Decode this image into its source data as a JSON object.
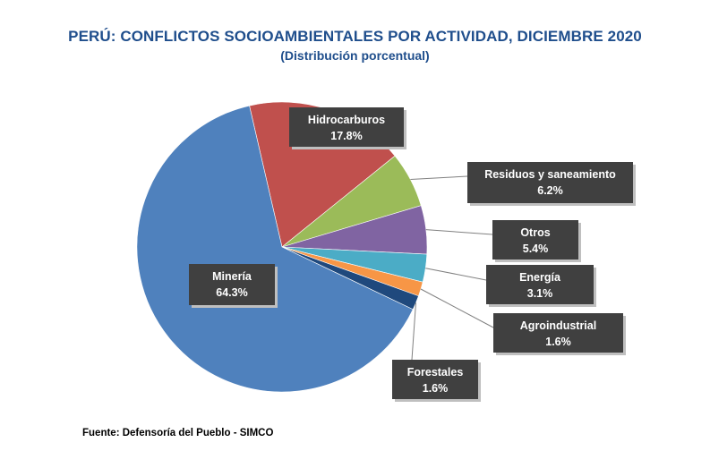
{
  "header": {
    "title": "PERÚ: CONFLICTOS SOCIOAMBIENTALES POR ACTIVIDAD, DICIEMBRE 2020",
    "subtitle": "(Distribución porcentual)"
  },
  "footer": {
    "source": "Fuente: Defensoría del Pueblo - SIMCO"
  },
  "chart_data": {
    "type": "pie",
    "title": "PERÚ: CONFLICTOS SOCIOAMBIENTALES POR ACTIVIDAD, DICIEMBRE 2020",
    "subtitle": "(Distribución porcentual)",
    "slices": [
      {
        "name": "Hidrocarburos",
        "value": 17.8,
        "label": "17.8%",
        "color": "#c0504d",
        "key": "hidrocarburos"
      },
      {
        "name": "Residuos y saneamiento",
        "value": 6.2,
        "label": "6.2%",
        "color": "#9bbb59",
        "key": "residuos"
      },
      {
        "name": "Otros",
        "value": 5.4,
        "label": "5.4%",
        "color": "#8064a2",
        "key": "otros"
      },
      {
        "name": "Energía",
        "value": 3.1,
        "label": "3.1%",
        "color": "#4bacc6",
        "key": "energia"
      },
      {
        "name": "Agroindustrial",
        "value": 1.6,
        "label": "1.6%",
        "color": "#f79646",
        "key": "agroindustrial"
      },
      {
        "name": "Forestales",
        "value": 1.6,
        "label": "1.6%",
        "color": "#1f497d",
        "key": "forestales"
      },
      {
        "name": "Minería",
        "value": 64.3,
        "label": "64.3%",
        "color": "#4f81bd",
        "key": "mineria"
      }
    ],
    "label_box_color": "#404040",
    "label_text_color": "#ffffff",
    "leader_color": "#808080"
  }
}
